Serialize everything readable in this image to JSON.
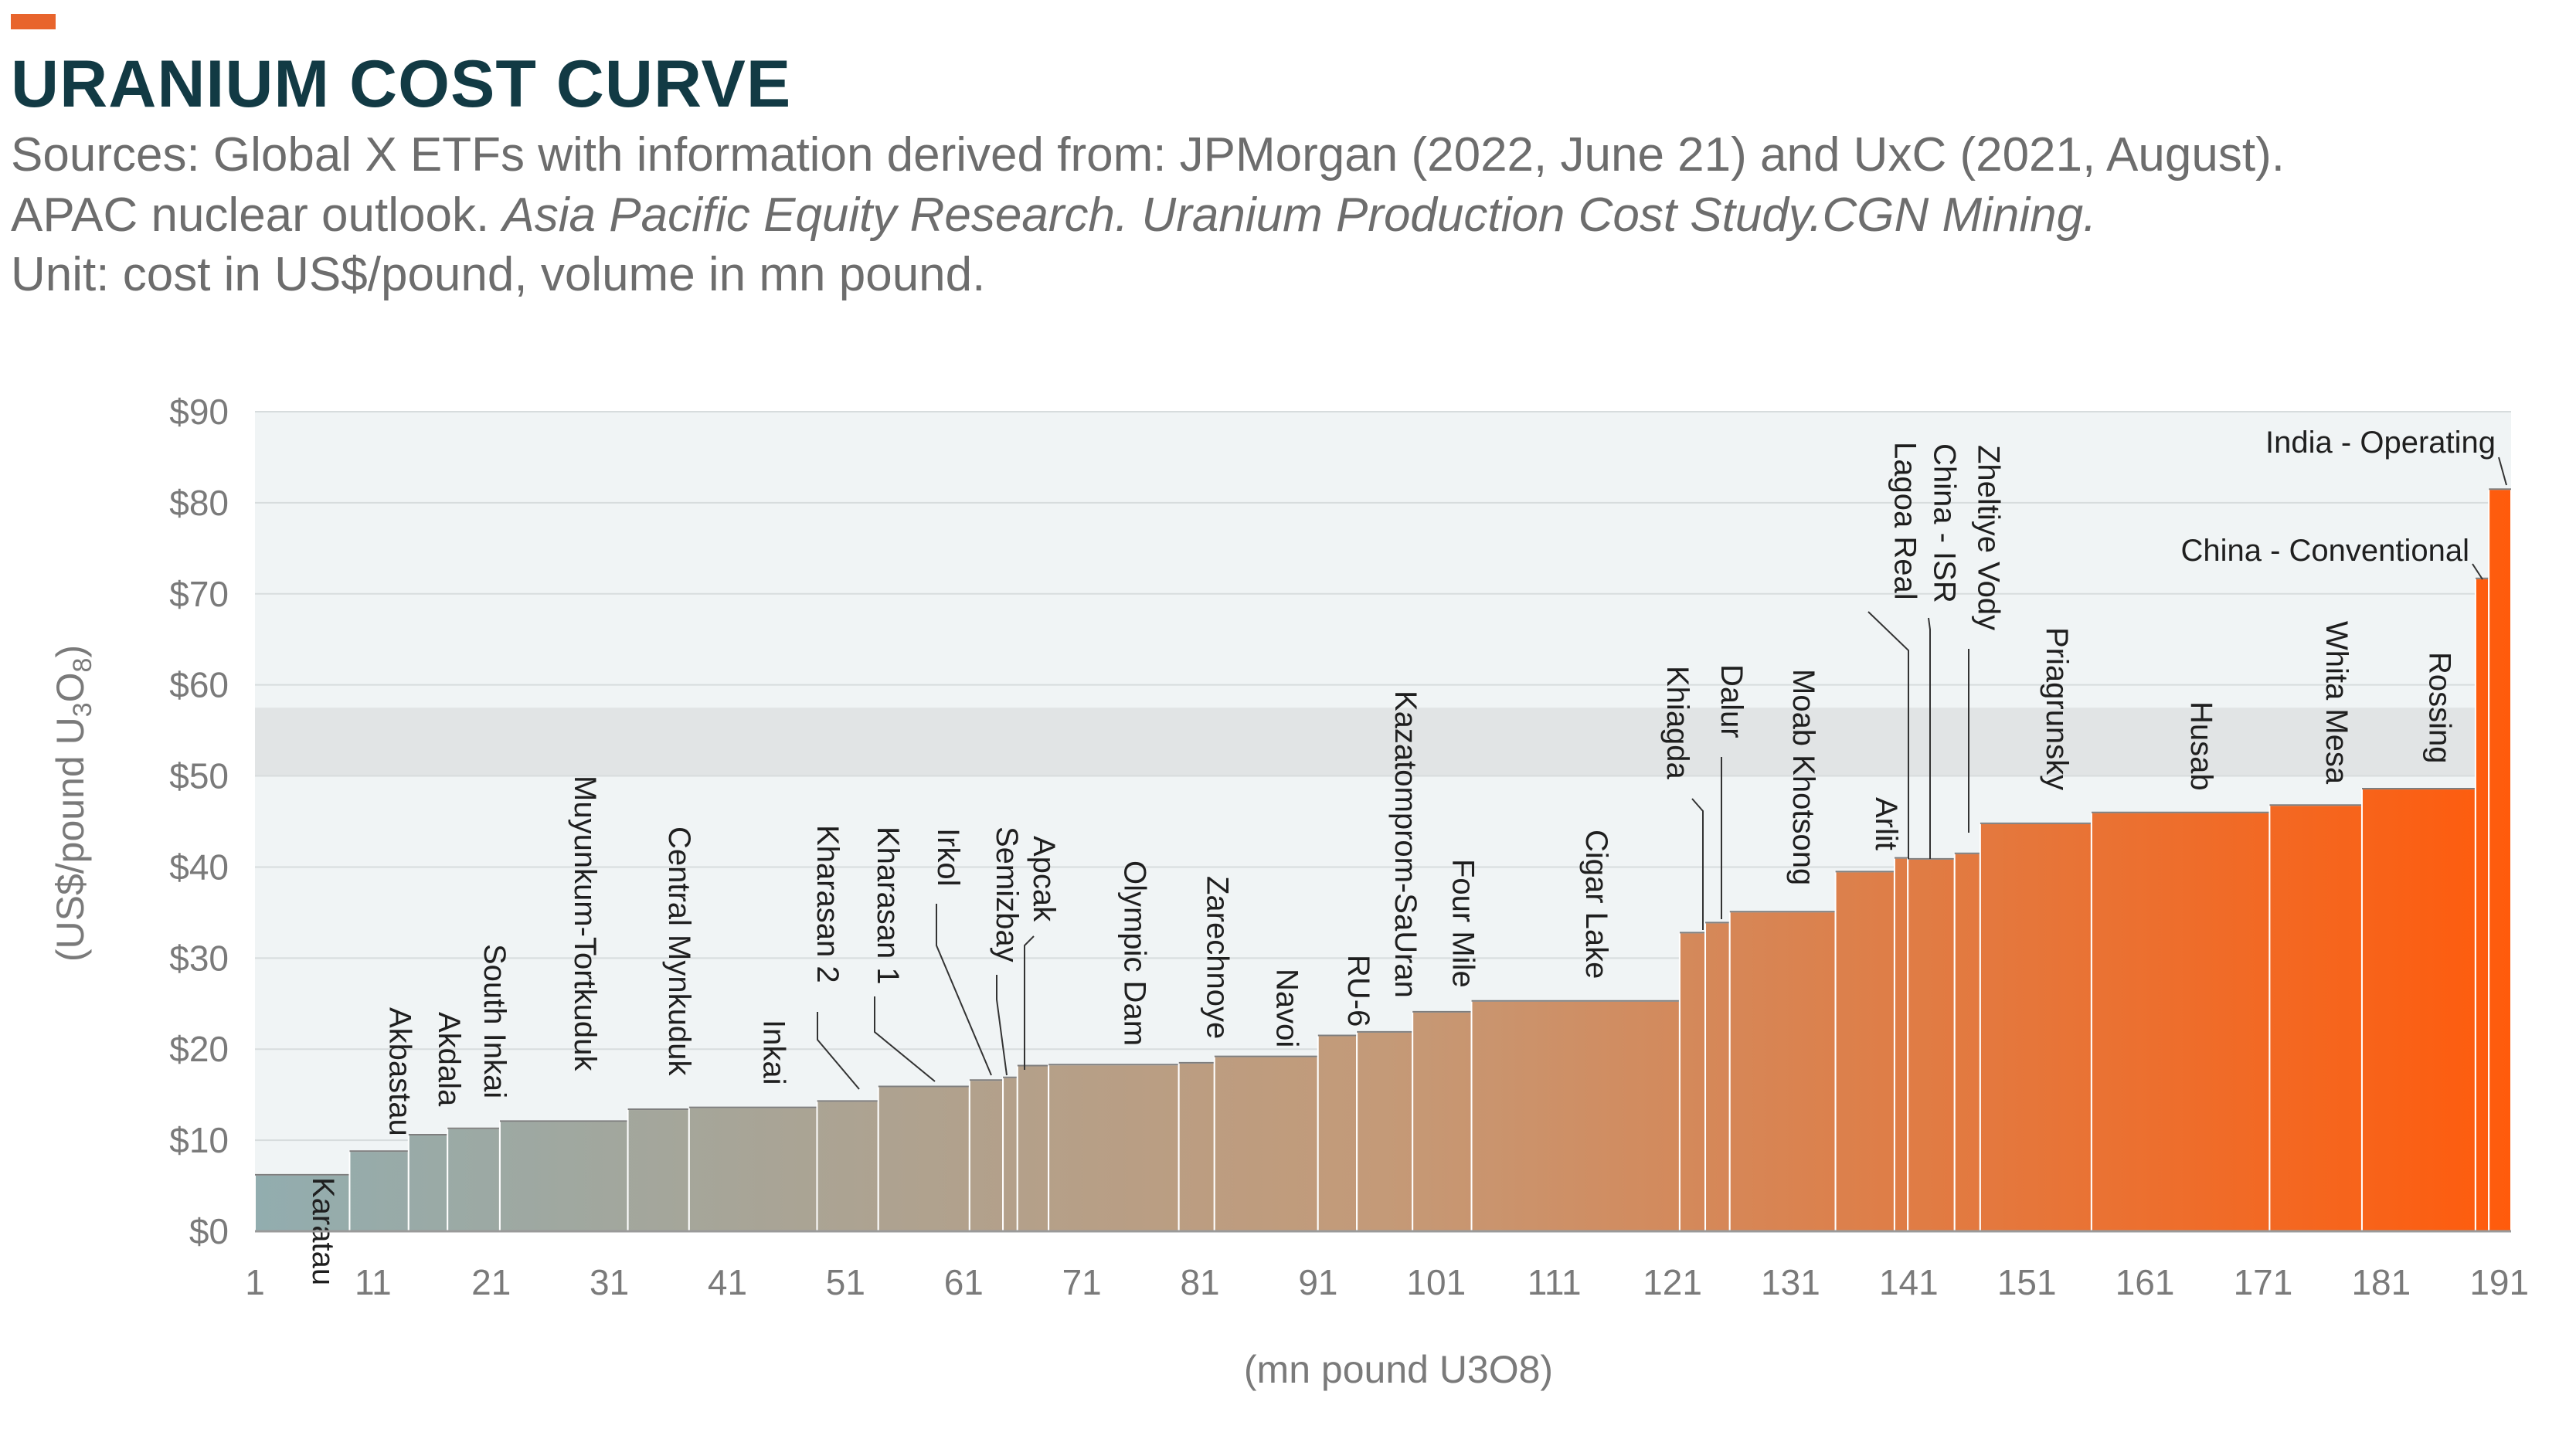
{
  "header": {
    "title": "URANIUM COST CURVE",
    "sources_line_1": "Sources: Global X ETFs with information derived from: JPMorgan (2022, June 21) and UxC (2021, August).",
    "sources_line_2_plain": "APAC nuclear outlook. ",
    "sources_line_2_italic": "Asia Pacific Equity Research. Uranium Production Cost Study.CGN Mining.",
    "unit_line": "Unit: cost in US$/pound, volume in mn pound."
  },
  "chart_data": {
    "type": "bar",
    "xlabel": "(mn pound U3O8)",
    "ylabel_main": "(US$/pound U",
    "ylabel_sub_3": "3",
    "ylabel_mid": "O",
    "ylabel_sub_8": "8",
    "ylabel_close": ")",
    "xlim": [
      1,
      192
    ],
    "ylim": [
      0,
      90
    ],
    "x_ticks": [
      1,
      11,
      21,
      31,
      41,
      51,
      61,
      71,
      81,
      91,
      101,
      111,
      121,
      131,
      141,
      151,
      161,
      171,
      181,
      191
    ],
    "y_ticks": [
      0,
      10,
      20,
      30,
      40,
      50,
      60,
      70,
      80,
      90
    ],
    "y_tick_labels": [
      "$0",
      "$10",
      "$20",
      "$30",
      "$40",
      "$50",
      "$60",
      "$70",
      "$80",
      "$90"
    ],
    "highlight_band": [
      50,
      57.5
    ],
    "grid": true,
    "color_start": "#92adaf",
    "color_end": "#ff5b0c",
    "mines": [
      {
        "name": "Karatau",
        "start": 1,
        "end": 9.5,
        "cost": 6.2
      },
      {
        "name": "Akbastau",
        "start": 9.5,
        "end": 14.8,
        "cost": 8.8
      },
      {
        "name": "Akdala",
        "start": 14.8,
        "end": 18.3,
        "cost": 10.6
      },
      {
        "name": "South Inkai",
        "start": 18.3,
        "end": 23,
        "cost": 11.3
      },
      {
        "name": "Muyunkum-Tortkuduk",
        "start": 23,
        "end": 34.5,
        "cost": 12.1
      },
      {
        "name": "Central Mynkuduk",
        "start": 34.5,
        "end": 40,
        "cost": 13.4
      },
      {
        "name": "Inkai",
        "start": 40,
        "end": 51.5,
        "cost": 13.6
      },
      {
        "name": "Kharasan 2",
        "start": 51.5,
        "end": 57,
        "cost": 14.3
      },
      {
        "name": "Kharasan 1",
        "start": 57,
        "end": 65.2,
        "cost": 15.9
      },
      {
        "name": "Irkol",
        "start": 65.2,
        "end": 68.2,
        "cost": 16.6
      },
      {
        "name": "Semizbay",
        "start": 68.2,
        "end": 69.5,
        "cost": 16.9
      },
      {
        "name": "Apcak",
        "start": 69.5,
        "end": 72.3,
        "cost": 18.2
      },
      {
        "name": "Olympic Dam",
        "start": 72.3,
        "end": 84,
        "cost": 18.3
      },
      {
        "name": "Zarechnoye",
        "start": 84,
        "end": 87.2,
        "cost": 18.5
      },
      {
        "name": "Navoi",
        "start": 87.2,
        "end": 96.5,
        "cost": 19.2
      },
      {
        "name": "RU-6",
        "start": 96.5,
        "end": 100,
        "cost": 21.5
      },
      {
        "name": "Kazatomprom-SaUran",
        "start": 100,
        "end": 105,
        "cost": 21.9
      },
      {
        "name": "Four Mile",
        "start": 105,
        "end": 110.3,
        "cost": 24.1
      },
      {
        "name": "Cigar Lake",
        "start": 110.3,
        "end": 129,
        "cost": 25.3
      },
      {
        "name": "Khiagda",
        "start": 129,
        "end": 131.3,
        "cost": 32.8
      },
      {
        "name": "Dalur",
        "start": 131.3,
        "end": 133.5,
        "cost": 33.9
      },
      {
        "name": "Moab Khotsong",
        "start": 133.5,
        "end": 143,
        "cost": 35.1
      },
      {
        "name": "Arlit",
        "start": 143,
        "end": 148.3,
        "cost": 39.5
      },
      {
        "name": "Lagoa Real",
        "start": 148.3,
        "end": 149.5,
        "cost": 41
      },
      {
        "name": "China - ISR",
        "start": 149.5,
        "end": 153.7,
        "cost": 40.9
      },
      {
        "name": "Zheltiye Vody",
        "start": 153.7,
        "end": 156,
        "cost": 41.5
      },
      {
        "name": "Priagrunsky",
        "start": 156,
        "end": 166,
        "cost": 44.8
      },
      {
        "name": "Husab",
        "start": 166,
        "end": 182,
        "cost": 46
      },
      {
        "name": "Whita Mesa",
        "start": 182,
        "end": 190.3,
        "cost": 46.8
      },
      {
        "name": "Rossing",
        "start": 190.3,
        "end": 200.5,
        "cost": 48.6
      },
      {
        "name": "China - Conventional",
        "start": 200.5,
        "end": 201.7,
        "cost": 71.7
      },
      {
        "name": "India - Operating",
        "start": 201.7,
        "end": 203.7,
        "cost": 81.5
      }
    ]
  }
}
